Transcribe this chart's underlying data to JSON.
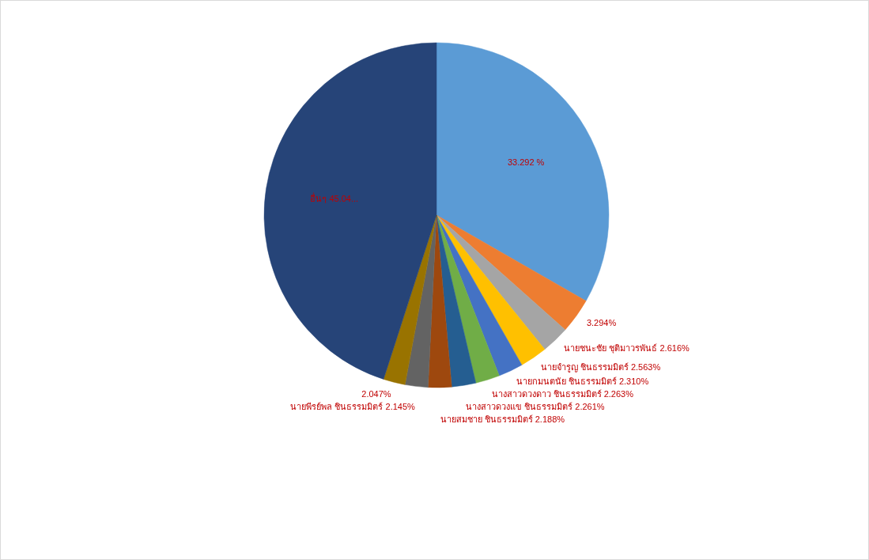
{
  "chart_data": {
    "type": "pie",
    "categories": [
      null,
      null,
      "นายชนะชัย ชุติมาวรพันธ์",
      "นายจำรูญ ชินธรรมมิตร์",
      "นายกมนตนัย ชินธรรมมิตร์",
      "นางสาวดวงดาว ชินธรรมมิตร์",
      "นางสาวดวงแข ชินธรรมมิตร์",
      "นายสมชาย ชินธรรมมิตร์",
      "นายพีรย์พล ชินธรรมมิตร์",
      null,
      "อื่นๆ"
    ],
    "values": [
      33.292,
      3.294,
      2.616,
      2.563,
      2.31,
      2.263,
      2.261,
      2.188,
      2.145,
      2.047,
      45.04
    ],
    "value_labels": [
      "33.292 %",
      "3.294%",
      "2.616%",
      "2.563%",
      "2.310%",
      "2.263%",
      "2.261%",
      "2.188%",
      "2.145%",
      "2.047%",
      "45.04..."
    ],
    "colors": [
      "#5b9bd5",
      "#ed7d31",
      "#a5a5a5",
      "#ffc000",
      "#4472c4",
      "#70ad47",
      "#255e91",
      "#9e480e",
      "#636363",
      "#997300",
      "#264478"
    ]
  }
}
